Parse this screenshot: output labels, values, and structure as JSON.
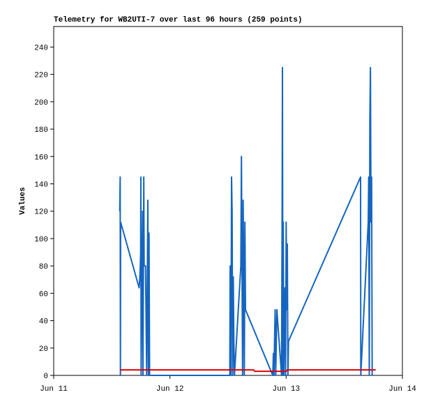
{
  "chart_data": {
    "type": "line",
    "title": "Telemetry for WB2UTI-7 over last 96 hours (259 points)",
    "y_label": "Values",
    "xlim": [
      0,
      3
    ],
    "xticks": [
      {
        "value": 0,
        "label": "Jun 11"
      },
      {
        "value": 1,
        "label": "Jun 12"
      },
      {
        "value": 2,
        "label": "Jun 13"
      },
      {
        "value": 3,
        "label": "Jun 14"
      }
    ],
    "ylim": [
      0,
      255
    ],
    "yticks": [
      0,
      20,
      40,
      60,
      80,
      100,
      120,
      140,
      160,
      180,
      200,
      220,
      240
    ],
    "grid": false,
    "series": [
      {
        "color": "#1565c0",
        "x": [
          0.568,
          0.572,
          0.574,
          0.576,
          0.735,
          0.74,
          0.745,
          0.748,
          0.75,
          0.752,
          0.76,
          0.765,
          0.768,
          0.775,
          0.778,
          0.79,
          0.8,
          0.81,
          0.815,
          0.82,
          0.825,
          1.515,
          1.518,
          1.522,
          1.525,
          1.53,
          1.535,
          1.54,
          1.545,
          1.55,
          1.555,
          1.61,
          1.615,
          1.62,
          1.625,
          1.63,
          1.635,
          1.64,
          1.645,
          1.65,
          1.87,
          1.885,
          1.89,
          1.895,
          1.9,
          1.905,
          1.91,
          1.92,
          1.96,
          1.965,
          1.968,
          1.972,
          1.975,
          1.98,
          1.985,
          1.99,
          1.995,
          2.0,
          2.005,
          2.01,
          2.015,
          2.02,
          2.64,
          2.642,
          2.706,
          2.71,
          2.715,
          2.72,
          2.725,
          2.73,
          2.735,
          2.74
        ],
        "values": [
          120,
          145,
          0,
          112,
          64,
          70,
          80,
          90,
          145,
          0,
          80,
          120,
          0,
          145,
          80,
          80,
          0,
          128,
          0,
          104,
          0,
          0,
          80,
          40,
          0,
          145,
          120,
          0,
          72,
          25,
          0,
          80,
          160,
          80,
          0,
          128,
          65,
          0,
          112,
          48,
          3,
          0,
          16,
          0,
          25,
          48,
          0,
          48,
          0,
          112,
          225,
          0,
          112,
          0,
          48,
          64,
          0,
          112,
          48,
          96,
          0,
          25,
          145,
          0,
          112,
          145,
          0,
          187,
          225,
          112,
          145,
          0
        ]
      },
      {
        "color": "#e00000",
        "x": [
          0.57,
          1.72,
          1.73,
          2.0,
          2.01,
          2.77
        ],
        "values": [
          4,
          4,
          3,
          3,
          4,
          4
        ]
      }
    ]
  }
}
